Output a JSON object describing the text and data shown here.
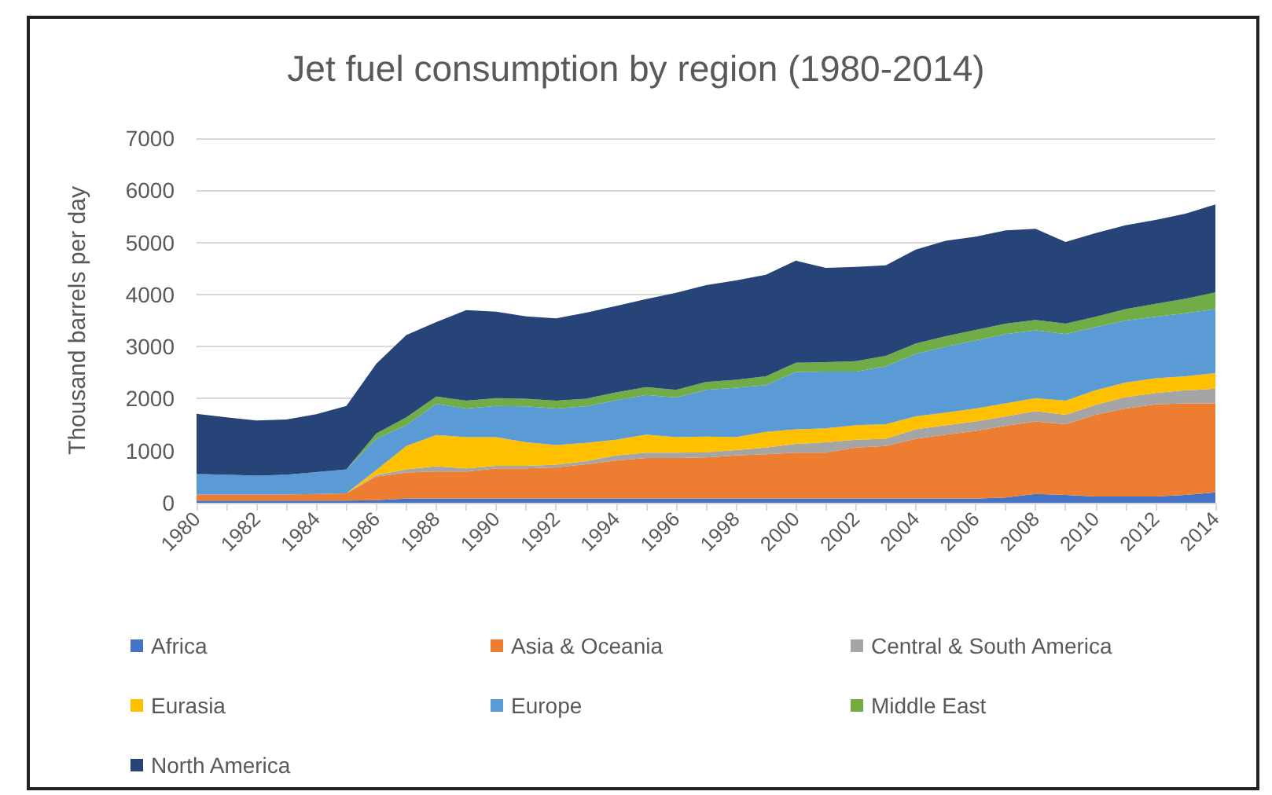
{
  "chart_data": {
    "type": "area",
    "title": "Jet fuel consumption by region (1980-2014)",
    "ylabel": "Thousand barrels per day",
    "stacked": true,
    "grid": "y",
    "legend": "bottom",
    "categories": [
      "1980",
      null,
      "1982",
      null,
      "1984",
      null,
      "1986",
      null,
      "1988",
      null,
      "1990",
      null,
      "1992",
      null,
      "1994",
      null,
      "1996",
      null,
      "1998",
      null,
      "2000",
      null,
      "2002",
      null,
      "2004",
      null,
      "2006",
      null,
      "2008",
      null,
      "2010",
      null,
      "2012",
      null,
      "2014"
    ],
    "ylim": [
      0,
      7000
    ],
    "yticks": [
      0,
      1000,
      2000,
      3000,
      4000,
      5000,
      6000,
      7000
    ],
    "series": [
      {
        "name": "Africa",
        "color": "#4472c4",
        "values": [
          40,
          40,
          40,
          40,
          40,
          40,
          50,
          80,
          80,
          80,
          80,
          80,
          80,
          80,
          80,
          80,
          80,
          80,
          80,
          80,
          80,
          80,
          80,
          80,
          80,
          80,
          80,
          100,
          170,
          150,
          120,
          120,
          120,
          150,
          200
        ]
      },
      {
        "name": "Asia & Oceania",
        "color": "#ed7d31",
        "values": [
          120,
          120,
          120,
          120,
          130,
          140,
          450,
          500,
          520,
          520,
          580,
          580,
          600,
          660,
          730,
          780,
          780,
          790,
          830,
          850,
          880,
          880,
          980,
          1010,
          1150,
          1230,
          1300,
          1380,
          1390,
          1360,
          1570,
          1690,
          1770,
          1760,
          1710
        ]
      },
      {
        "name": "Central & South America",
        "color": "#a5a5a5",
        "values": [
          0,
          0,
          0,
          0,
          0,
          0,
          30,
          60,
          100,
          60,
          50,
          50,
          50,
          60,
          100,
          100,
          100,
          100,
          100,
          130,
          170,
          200,
          150,
          140,
          180,
          180,
          180,
          180,
          200,
          180,
          190,
          220,
          220,
          250,
          280
        ]
      },
      {
        "name": "Eurasia",
        "color": "#ffc000",
        "values": [
          0,
          0,
          0,
          0,
          0,
          0,
          100,
          450,
          600,
          600,
          550,
          450,
          380,
          350,
          300,
          350,
          300,
          300,
          250,
          300,
          280,
          270,
          280,
          280,
          250,
          240,
          250,
          250,
          250,
          270,
          280,
          280,
          280,
          270,
          300
        ]
      },
      {
        "name": "Europe",
        "color": "#5b9bd5",
        "values": [
          390,
          380,
          360,
          380,
          420,
          460,
          600,
          400,
          600,
          550,
          600,
          690,
          700,
          700,
          760,
          760,
          760,
          900,
          950,
          900,
          1100,
          1090,
          1030,
          1110,
          1200,
          1270,
          1310,
          1330,
          1300,
          1280,
          1210,
          1190,
          1180,
          1210,
          1230
        ]
      },
      {
        "name": "Middle East",
        "color": "#70ad47",
        "values": [
          0,
          0,
          0,
          0,
          0,
          0,
          100,
          150,
          140,
          150,
          150,
          150,
          150,
          150,
          150,
          150,
          150,
          150,
          150,
          170,
          180,
          180,
          200,
          200,
          200,
          200,
          200,
          200,
          200,
          200,
          200,
          220,
          250,
          280,
          320
        ]
      },
      {
        "name": "North America",
        "color": "#264478",
        "values": [
          1160,
          1100,
          1060,
          1060,
          1110,
          1220,
          1340,
          1580,
          1430,
          1740,
          1660,
          1580,
          1580,
          1650,
          1660,
          1690,
          1860,
          1860,
          1910,
          1950,
          1960,
          1810,
          1810,
          1740,
          1800,
          1830,
          1790,
          1790,
          1750,
          1570,
          1610,
          1610,
          1610,
          1630,
          1690
        ]
      }
    ]
  }
}
